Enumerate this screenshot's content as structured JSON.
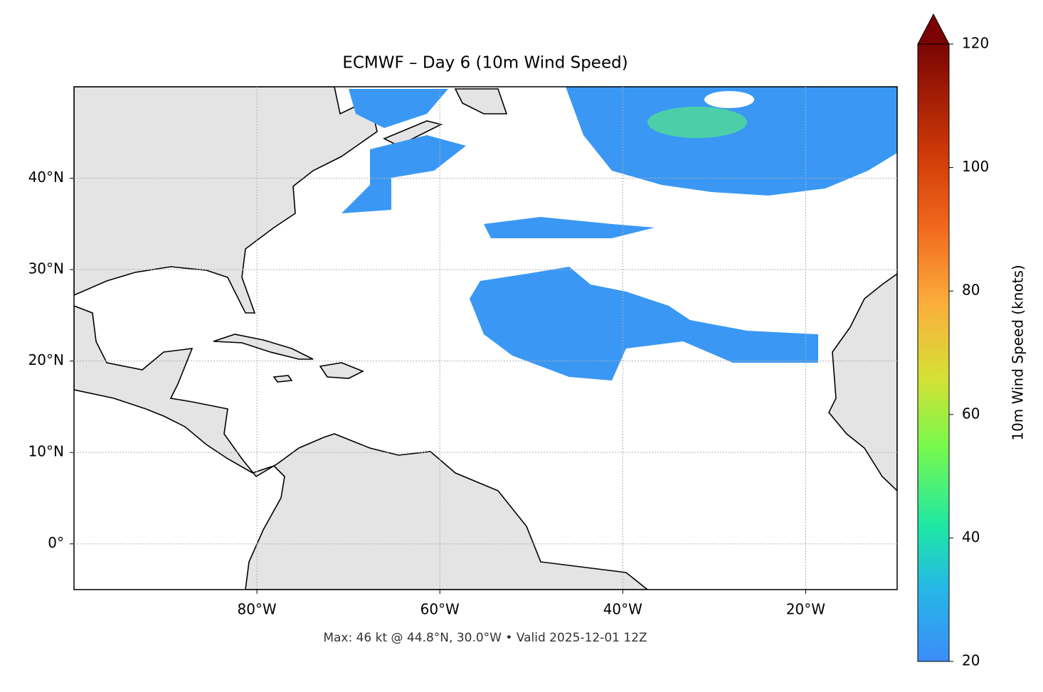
{
  "chart_data": {
    "type": "map",
    "title": "ECMWF – Day 6 (10m Wind Speed)",
    "footer": "Max: 46 kt @ 44.8°N, 30.0°W • Valid 2025-12-01 12Z",
    "xlim": [
      -100,
      -10
    ],
    "ylim": [
      -5,
      50
    ],
    "xticks": [
      {
        "value": -80,
        "label": "80°W"
      },
      {
        "value": -60,
        "label": "60°W"
      },
      {
        "value": -40,
        "label": "40°W"
      },
      {
        "value": -20,
        "label": "20°W"
      }
    ],
    "yticks": [
      {
        "value": 0,
        "label": "0°"
      },
      {
        "value": 10,
        "label": "10°N"
      },
      {
        "value": 20,
        "label": "20°N"
      },
      {
        "value": 30,
        "label": "30°N"
      },
      {
        "value": 40,
        "label": "40°N"
      }
    ],
    "grid": true,
    "colorbar": {
      "label": "10m Wind Speed (knots)",
      "clim": [
        20,
        120
      ],
      "ticks": [
        20,
        40,
        60,
        80,
        100,
        120
      ]
    }
  }
}
